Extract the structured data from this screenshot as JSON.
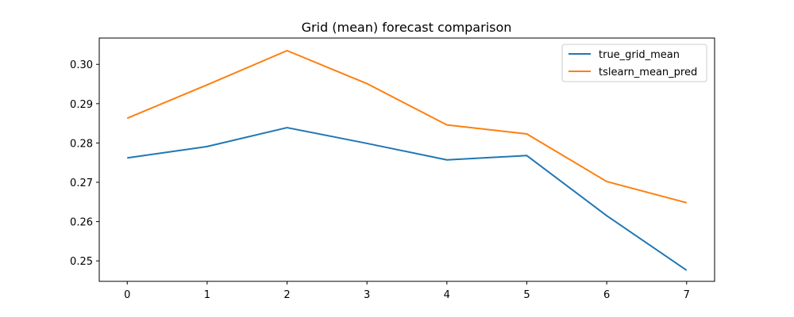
{
  "chart_data": {
    "type": "line",
    "title": "Grid (mean) forecast comparison",
    "xlabel": "",
    "ylabel": "",
    "x": [
      0,
      1,
      2,
      3,
      4,
      5,
      6,
      7
    ],
    "xlim": [
      -0.35,
      7.35
    ],
    "ylim": [
      0.2448,
      0.3067
    ],
    "xticks": [
      "0",
      "1",
      "2",
      "3",
      "4",
      "5",
      "6",
      "7"
    ],
    "yticks": [
      "0.25",
      "0.26",
      "0.27",
      "0.28",
      "0.29",
      "0.30"
    ],
    "grid": false,
    "legend_position": "top-right",
    "series": [
      {
        "name": "true_grid_mean",
        "color": "#1f77b4",
        "values": [
          0.2762,
          0.2791,
          0.2839,
          0.2799,
          0.2757,
          0.2768,
          0.2615,
          0.2476
        ]
      },
      {
        "name": "tslearn_mean_pred",
        "color": "#ff7f0e",
        "values": [
          0.2863,
          0.2948,
          0.3035,
          0.2951,
          0.2846,
          0.2823,
          0.2702,
          0.2648
        ]
      }
    ]
  }
}
